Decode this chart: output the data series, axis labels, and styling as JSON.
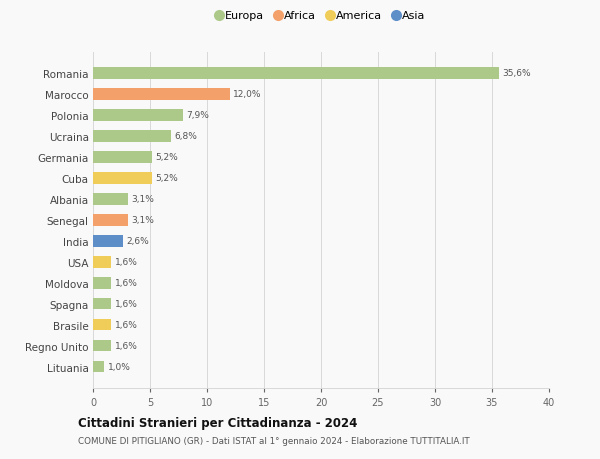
{
  "countries": [
    "Romania",
    "Marocco",
    "Polonia",
    "Ucraina",
    "Germania",
    "Cuba",
    "Albania",
    "Senegal",
    "India",
    "USA",
    "Moldova",
    "Spagna",
    "Brasile",
    "Regno Unito",
    "Lituania"
  ],
  "values": [
    35.6,
    12.0,
    7.9,
    6.8,
    5.2,
    5.2,
    3.1,
    3.1,
    2.6,
    1.6,
    1.6,
    1.6,
    1.6,
    1.6,
    1.0
  ],
  "labels": [
    "35,6%",
    "12,0%",
    "7,9%",
    "6,8%",
    "5,2%",
    "5,2%",
    "3,1%",
    "3,1%",
    "2,6%",
    "1,6%",
    "1,6%",
    "1,6%",
    "1,6%",
    "1,6%",
    "1,0%"
  ],
  "continents": [
    "Europa",
    "Africa",
    "Europa",
    "Europa",
    "Europa",
    "America",
    "Europa",
    "Africa",
    "Asia",
    "America",
    "Europa",
    "Europa",
    "America",
    "Europa",
    "Europa"
  ],
  "colors": {
    "Europa": "#adc98a",
    "Africa": "#f3a06a",
    "America": "#f0cc58",
    "Asia": "#5e8ec8"
  },
  "title": "Cittadini Stranieri per Cittadinanza - 2024",
  "subtitle": "COMUNE DI PITIGLIANO (GR) - Dati ISTAT al 1° gennaio 2024 - Elaborazione TUTTITALIA.IT",
  "xlim": [
    0,
    40
  ],
  "xticks": [
    0,
    5,
    10,
    15,
    20,
    25,
    30,
    35,
    40
  ],
  "background_color": "#f9f9f9",
  "grid_color": "#d8d8d8"
}
